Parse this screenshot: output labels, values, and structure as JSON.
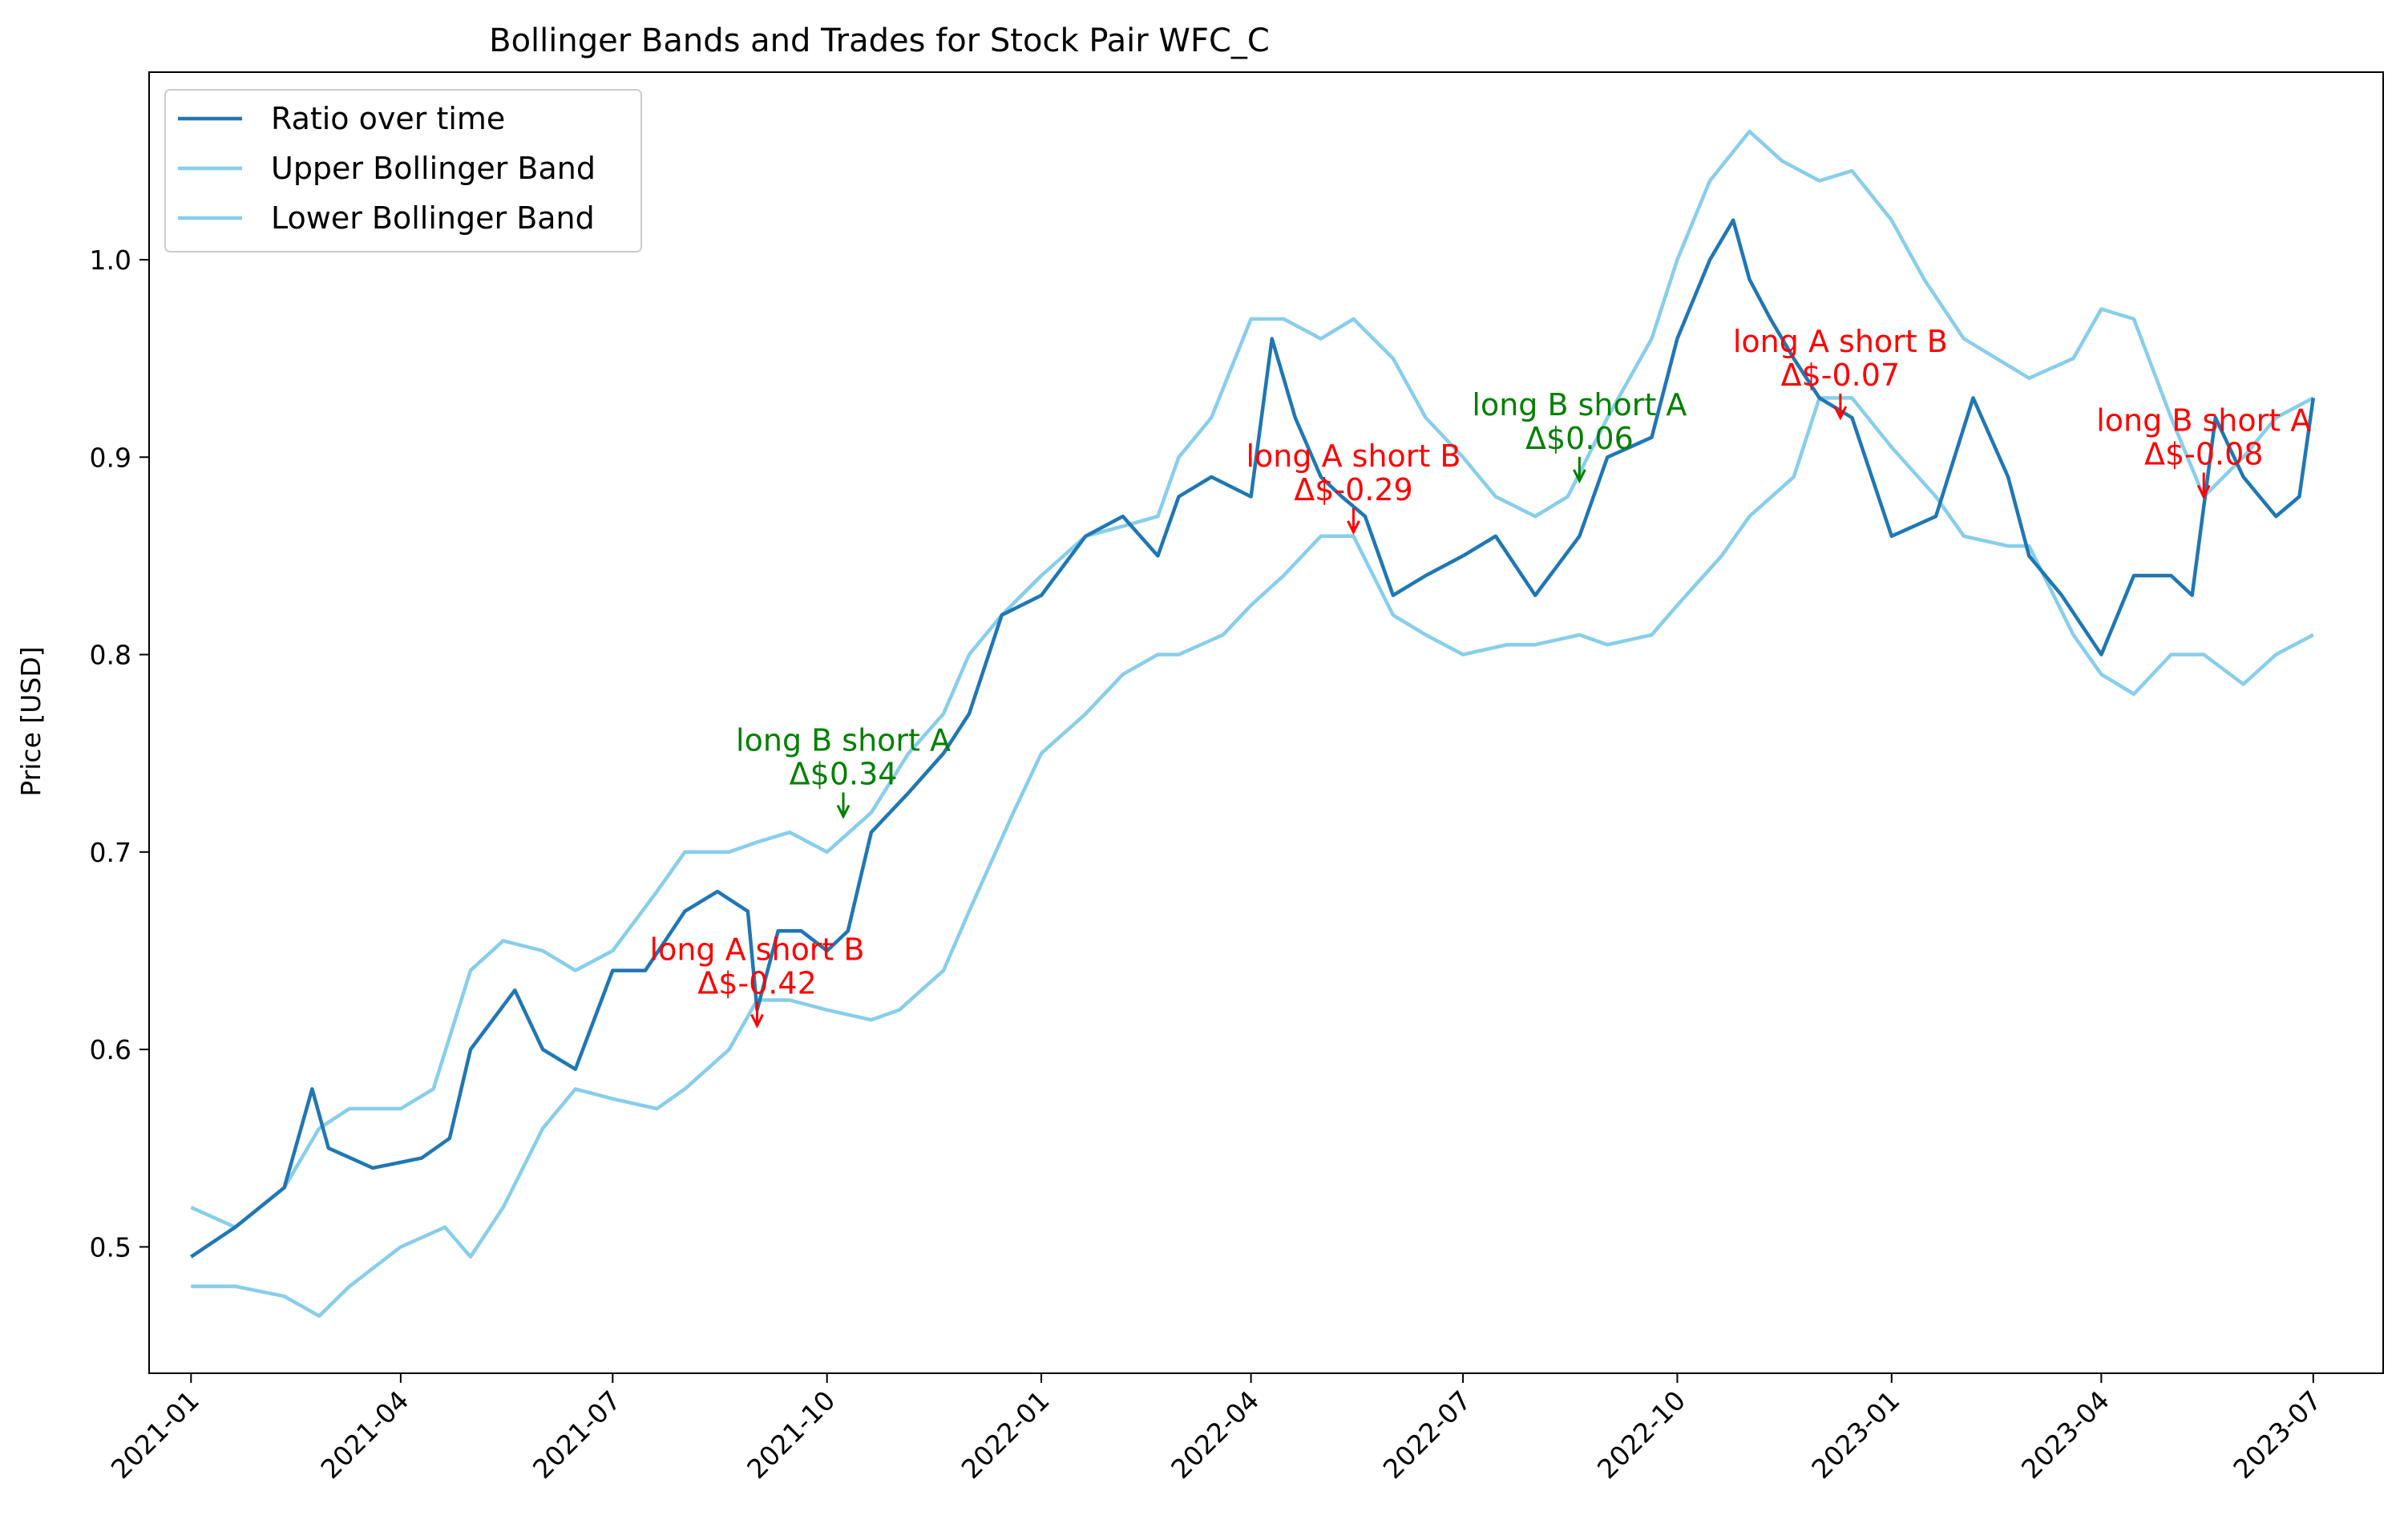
{
  "chart_data": {
    "type": "line",
    "title": "Bollinger Bands and Trades for Stock Pair WFC_C",
    "xlabel": "",
    "ylabel": "Price [USD]",
    "x_range": [
      "2020-12-14",
      "2023-07-31"
    ],
    "ylim": [
      0.436,
      1.095
    ],
    "x_ticks": [
      "2021-01-01",
      "2021-04-01",
      "2021-07-01",
      "2021-10-01",
      "2022-01-01",
      "2022-04-01",
      "2022-07-01",
      "2022-10-01",
      "2023-01-01",
      "2023-04-01",
      "2023-07-01"
    ],
    "x_tick_labels": [
      "2021-01",
      "2021-04",
      "2021-07",
      "2021-10",
      "2022-01",
      "2022-04",
      "2022-07",
      "2022-10",
      "2023-01",
      "2023-04",
      "2023-07"
    ],
    "y_ticks": [
      0.5,
      0.6,
      0.7,
      0.8,
      0.9,
      1.0
    ],
    "y_tick_labels": [
      "0.5",
      "0.6",
      "0.7",
      "0.8",
      "0.9",
      "1.0"
    ],
    "grid": false,
    "legend_position": "top-left",
    "series": [
      {
        "name": "Ratio over time",
        "color": "#1f77b4",
        "x": [
          "2021-01-01",
          "2021-01-20",
          "2021-02-10",
          "2021-02-22",
          "2021-03-01",
          "2021-03-20",
          "2021-04-10",
          "2021-04-22",
          "2021-05-01",
          "2021-05-20",
          "2021-06-01",
          "2021-06-15",
          "2021-07-01",
          "2021-07-15",
          "2021-08-01",
          "2021-08-15",
          "2021-08-28",
          "2021-09-01",
          "2021-09-10",
          "2021-09-20",
          "2021-10-01",
          "2021-10-10",
          "2021-10-20",
          "2021-11-05",
          "2021-11-20",
          "2021-12-01",
          "2021-12-15",
          "2022-01-01",
          "2022-01-20",
          "2022-02-05",
          "2022-02-20",
          "2022-03-01",
          "2022-03-15",
          "2022-04-01",
          "2022-04-10",
          "2022-04-20",
          "2022-05-01",
          "2022-05-10",
          "2022-05-20",
          "2022-06-01",
          "2022-06-15",
          "2022-07-01",
          "2022-07-15",
          "2022-08-01",
          "2022-08-20",
          "2022-09-01",
          "2022-09-20",
          "2022-10-01",
          "2022-10-15",
          "2022-10-25",
          "2022-11-01",
          "2022-11-10",
          "2022-11-20",
          "2022-12-01",
          "2022-12-15",
          "2023-01-01",
          "2023-01-20",
          "2023-02-05",
          "2023-02-20",
          "2023-03-01",
          "2023-03-15",
          "2023-04-01",
          "2023-04-15",
          "2023-05-01",
          "2023-05-10",
          "2023-05-20",
          "2023-06-01",
          "2023-06-15",
          "2023-06-25",
          "2023-07-01"
        ],
        "values": [
          0.495,
          0.51,
          0.53,
          0.58,
          0.55,
          0.54,
          0.545,
          0.555,
          0.6,
          0.63,
          0.6,
          0.59,
          0.64,
          0.64,
          0.67,
          0.68,
          0.67,
          0.62,
          0.66,
          0.66,
          0.65,
          0.66,
          0.71,
          0.73,
          0.75,
          0.77,
          0.82,
          0.83,
          0.86,
          0.87,
          0.85,
          0.88,
          0.89,
          0.88,
          0.96,
          0.92,
          0.89,
          0.88,
          0.87,
          0.83,
          0.84,
          0.85,
          0.86,
          0.83,
          0.86,
          0.9,
          0.91,
          0.96,
          1.0,
          1.02,
          0.99,
          0.97,
          0.95,
          0.93,
          0.92,
          0.86,
          0.87,
          0.93,
          0.89,
          0.85,
          0.83,
          0.8,
          0.84,
          0.84,
          0.83,
          0.92,
          0.89,
          0.87,
          0.88,
          0.93
        ]
      },
      {
        "name": "Upper Bollinger Band",
        "color": "#87ceeb",
        "x": [
          "2021-01-01",
          "2021-01-20",
          "2021-02-10",
          "2021-02-25",
          "2021-03-10",
          "2021-04-01",
          "2021-04-15",
          "2021-05-01",
          "2021-05-15",
          "2021-06-01",
          "2021-06-15",
          "2021-07-01",
          "2021-07-20",
          "2021-08-01",
          "2021-08-20",
          "2021-09-01",
          "2021-09-15",
          "2021-10-01",
          "2021-10-20",
          "2021-11-05",
          "2021-11-20",
          "2021-12-01",
          "2021-12-15",
          "2022-01-01",
          "2022-01-20",
          "2022-02-05",
          "2022-02-20",
          "2022-03-01",
          "2022-03-15",
          "2022-04-01",
          "2022-04-15",
          "2022-05-01",
          "2022-05-15",
          "2022-06-01",
          "2022-06-15",
          "2022-07-01",
          "2022-07-15",
          "2022-08-01",
          "2022-08-15",
          "2022-09-01",
          "2022-09-20",
          "2022-10-01",
          "2022-10-15",
          "2022-11-01",
          "2022-11-15",
          "2022-12-01",
          "2022-12-15",
          "2023-01-01",
          "2023-01-15",
          "2023-02-01",
          "2023-02-15",
          "2023-03-01",
          "2023-03-20",
          "2023-04-01",
          "2023-04-15",
          "2023-05-01",
          "2023-05-15",
          "2023-06-01",
          "2023-06-15",
          "2023-07-01"
        ],
        "values": [
          0.52,
          0.51,
          0.53,
          0.56,
          0.57,
          0.57,
          0.58,
          0.64,
          0.655,
          0.65,
          0.64,
          0.65,
          0.68,
          0.7,
          0.7,
          0.705,
          0.71,
          0.7,
          0.72,
          0.75,
          0.77,
          0.8,
          0.82,
          0.84,
          0.86,
          0.865,
          0.87,
          0.9,
          0.92,
          0.97,
          0.97,
          0.96,
          0.97,
          0.95,
          0.92,
          0.9,
          0.88,
          0.87,
          0.88,
          0.92,
          0.96,
          1.0,
          1.04,
          1.065,
          1.05,
          1.04,
          1.045,
          1.02,
          0.99,
          0.96,
          0.95,
          0.94,
          0.95,
          0.975,
          0.97,
          0.92,
          0.88,
          0.9,
          0.92,
          0.93
        ]
      },
      {
        "name": "Lower Bollinger Band",
        "color": "#87ceeb",
        "x": [
          "2021-01-01",
          "2021-01-20",
          "2021-02-10",
          "2021-02-25",
          "2021-03-10",
          "2021-04-01",
          "2021-04-20",
          "2021-05-01",
          "2021-05-15",
          "2021-06-01",
          "2021-06-15",
          "2021-07-01",
          "2021-07-20",
          "2021-08-01",
          "2021-08-20",
          "2021-09-01",
          "2021-09-15",
          "2021-10-01",
          "2021-10-20",
          "2021-11-01",
          "2021-11-20",
          "2021-12-01",
          "2021-12-20",
          "2022-01-01",
          "2022-01-20",
          "2022-02-05",
          "2022-02-20",
          "2022-03-01",
          "2022-03-20",
          "2022-04-01",
          "2022-04-15",
          "2022-05-01",
          "2022-05-15",
          "2022-06-01",
          "2022-06-15",
          "2022-07-01",
          "2022-07-20",
          "2022-08-01",
          "2022-08-20",
          "2022-09-01",
          "2022-09-20",
          "2022-10-01",
          "2022-10-20",
          "2022-11-01",
          "2022-11-20",
          "2022-12-01",
          "2022-12-15",
          "2023-01-01",
          "2023-01-20",
          "2023-02-01",
          "2023-02-20",
          "2023-03-01",
          "2023-03-20",
          "2023-04-01",
          "2023-04-15",
          "2023-05-01",
          "2023-05-15",
          "2023-06-01",
          "2023-06-15",
          "2023-07-01"
        ],
        "values": [
          0.48,
          0.48,
          0.475,
          0.465,
          0.48,
          0.5,
          0.51,
          0.495,
          0.52,
          0.56,
          0.58,
          0.575,
          0.57,
          0.58,
          0.6,
          0.625,
          0.625,
          0.62,
          0.615,
          0.62,
          0.64,
          0.67,
          0.72,
          0.75,
          0.77,
          0.79,
          0.8,
          0.8,
          0.81,
          0.825,
          0.84,
          0.86,
          0.86,
          0.82,
          0.81,
          0.8,
          0.805,
          0.805,
          0.81,
          0.805,
          0.81,
          0.825,
          0.85,
          0.87,
          0.89,
          0.93,
          0.93,
          0.905,
          0.88,
          0.86,
          0.855,
          0.855,
          0.81,
          0.79,
          0.78,
          0.8,
          0.8,
          0.785,
          0.8,
          0.81
        ]
      }
    ],
    "annotations": [
      {
        "line1": "long A short B",
        "line2": "Δ$-0.42",
        "x": "2021-09-01",
        "y": 0.612,
        "color": "#ff0000"
      },
      {
        "line1": "long B short A",
        "line2": "Δ$0.34",
        "x": "2021-10-08",
        "y": 0.718,
        "color": "#008000"
      },
      {
        "line1": "long A short B",
        "line2": "Δ$-0.29",
        "x": "2022-05-15",
        "y": 0.862,
        "color": "#ff0000"
      },
      {
        "line1": "long B short A",
        "line2": "Δ$0.06",
        "x": "2022-08-20",
        "y": 0.888,
        "color": "#008000"
      },
      {
        "line1": "long A short B",
        "line2": "Δ$-0.07",
        "x": "2022-12-10",
        "y": 0.92,
        "color": "#ff0000"
      },
      {
        "line1": "long B short A",
        "line2": "Δ$-0.08",
        "x": "2023-05-15",
        "y": 0.88,
        "color": "#ff0000"
      }
    ]
  }
}
